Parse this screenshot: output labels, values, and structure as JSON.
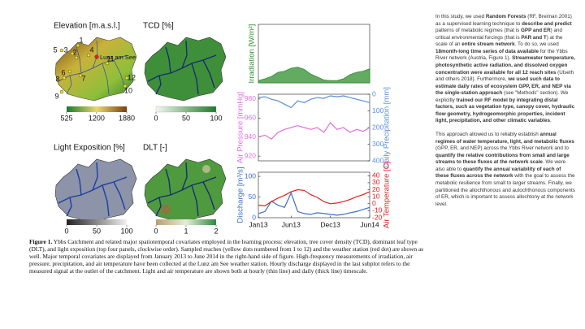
{
  "chart_data": [
    {
      "type": "area",
      "ylim": [
        0,
        1000
      ],
      "ylabel": "Irradiation [W/m²]",
      "series": [
        {
          "name": "Irradiation",
          "color": "#2f8f2f",
          "axis": "y",
          "values": [
            40,
            70,
            110,
            180,
            200,
            250,
            270,
            230,
            150,
            100,
            50,
            40,
            40,
            70,
            140,
            180,
            200,
            240
          ]
        }
      ]
    },
    {
      "type": "line",
      "ylim": [
        915,
        985
      ],
      "yticks": [
        920,
        940,
        960,
        980
      ],
      "ylabel": "Air Pressure [mmHg]",
      "y2lim": [
        0,
        400
      ],
      "y2ticks": [
        0,
        100,
        200,
        300,
        400
      ],
      "y2_reversed": true,
      "y2label": "Daily Precipitation [mm]",
      "series": [
        {
          "name": "Air Pressure",
          "color": "#e070e0",
          "axis": "y",
          "values": [
            940,
            942,
            938,
            945,
            948,
            950,
            952,
            950,
            948,
            950,
            945,
            955,
            948,
            950,
            945,
            948,
            946,
            950
          ]
        },
        {
          "name": "Daily Precipitation",
          "color": "#5b8fd9",
          "axis": "y2",
          "values": [
            20,
            15,
            30,
            40,
            60,
            80,
            40,
            50,
            30,
            20,
            25,
            10,
            15,
            10,
            20,
            30,
            40,
            50
          ]
        }
      ]
    },
    {
      "type": "line",
      "ylim": [
        0,
        110
      ],
      "yticks": [
        0,
        50,
        100
      ],
      "ylabel": "Discharge [m³/s]",
      "y2lim": [
        -20,
        45
      ],
      "y2ticks": [
        -20,
        -10,
        0,
        10,
        20,
        30,
        40
      ],
      "y2label": "Air Temperature [C]",
      "categories": [
        "Jan13",
        null,
        null,
        null,
        null,
        "Jun13",
        null,
        null,
        null,
        null,
        null,
        "Dec13",
        null,
        null,
        null,
        null,
        null,
        "Jun14"
      ],
      "series": [
        {
          "name": "Discharge",
          "color": "#3c6fc4",
          "axis": "y",
          "values": [
            10,
            15,
            40,
            30,
            25,
            60,
            15,
            10,
            8,
            12,
            10,
            8,
            6,
            8,
            12,
            15,
            20,
            25
          ]
        },
        {
          "name": "Air Temperature",
          "color": "#e02020",
          "axis": "y2",
          "values": [
            -2,
            -3,
            3,
            8,
            12,
            17,
            20,
            19,
            13,
            9,
            3,
            0,
            1,
            3,
            6,
            10,
            13,
            17
          ]
        }
      ]
    }
  ],
  "maps": [
    {
      "title": "Elevation [m.a.s.l.]",
      "colorbar": [
        525,
        1200,
        1880
      ]
    },
    {
      "title": "TCD [%]",
      "colorbar": [
        0,
        50,
        100
      ]
    },
    {
      "title": "Light Exposition [%]",
      "colorbar": [
        0,
        50,
        100
      ]
    },
    {
      "title": "DLT [-]",
      "colorbar": [
        0,
        1,
        2
      ]
    }
  ],
  "sites": [
    "1",
    "2",
    "3",
    "4",
    "5",
    "6",
    "7",
    "8",
    "9",
    "10",
    "11",
    "12"
  ],
  "station": "Lunz am See",
  "text": {
    "paragraphs": [
      [
        {
          "text": "In this study, we used "
        },
        {
          "text": "Random Forests",
          "bold": true
        },
        {
          "text": " (RF, Breiman 2001) as a supervised learning technique to "
        },
        {
          "text": "describe and predict",
          "bold": true
        },
        {
          "text": " patterns of metabolic regimes (that is "
        },
        {
          "text": "GPP and ER",
          "bold": true
        },
        {
          "text": ") and critical environmental forcings (that is "
        },
        {
          "text": "PAR and T",
          "bold": true
        },
        {
          "text": ") at the scale of an "
        },
        {
          "text": "entire stream network",
          "bold": true
        },
        {
          "text": ". To do so, we used "
        },
        {
          "text": "18month-long time series of data available",
          "bold": true
        },
        {
          "text": " for the Ybbs River network (Austria, Figure 1). "
        },
        {
          "text": "Streamwater temperature, photosynthetic active radiation, and dissolved oxygen concentration were available for all 12 reach sites",
          "bold": true
        },
        {
          "text": " (Ulseth and others 2018). Furthermore, "
        },
        {
          "text": "we used such data to estimate daily rates of ecosystem GPP, ER, and NEP via the single-station approach",
          "bold": true
        },
        {
          "text": " (see \"Methods\" section). We explicitly "
        },
        {
          "text": "trained our RF model by integrating distal factors, such as vegetation type, canopy cover, hydraulic flow geometry, hydrogeomorphic properties, incident light, precipitation, and other climatic variables",
          "bold": true
        },
        {
          "text": "."
        }
      ],
      [
        {
          "text": "This approach allowed us to reliably establish "
        },
        {
          "text": "annual regimes of water temperature, light, and metabolic fluxes",
          "bold": true
        },
        {
          "text": " (GPP, ER, and NEP) across the Ybbs River network and to "
        },
        {
          "text": "quantify the relative contributions from small and large streams to these fluxes at the network scale",
          "bold": true
        },
        {
          "text": ". We were also able to "
        },
        {
          "text": "quantify the annual variability of each of these fluxes across the network",
          "bold": true
        },
        {
          "text": " with the goal to assess the metabolic resilience from small to larger streams. Finally, we partitioned the allochthonous and autochthonous components of ER, which is important to assess allochtony at the network level."
        }
      ]
    ]
  },
  "caption": {
    "label": "Figure 1.",
    "text": " Ybbs Catchment and related major spatiotemporal covariates employed in the learning process: elevation, tree cover density (TCD), dominant leaf type (DLT), and light exposition (top four panels, clockwise order). Sampled reaches (yellow dots numbered from 1 to 12) and the weather station (red dot) are shown as well. Major temporal covariates are displayed from January 2013 to June 2014 in the right-hand side of figure. High-frequency measurements of irradiation, air pressure, precipitation, and air temperature have been collected at the Lunz am See weather station. Hourly discharge displayed in the last subplot refers to the measured signal at the outlet of the catchment. Light and air temperature are shown both at hourly (thin line) and daily (thick line) timescale."
  }
}
